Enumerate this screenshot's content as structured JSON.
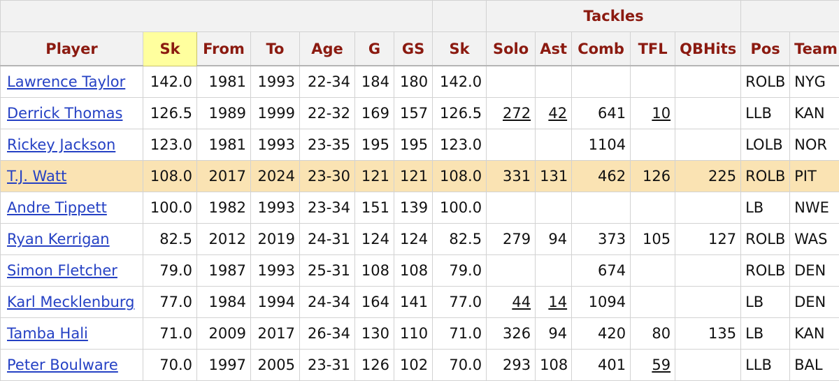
{
  "over_header": {
    "tackles_label": "Tackles"
  },
  "columns": [
    "Player",
    "Sk",
    "From",
    "To",
    "Age",
    "G",
    "GS",
    "Sk",
    "Solo",
    "Ast",
    "Comb",
    "TFL",
    "QBHits",
    "Pos",
    "Team"
  ],
  "colors": {
    "header_text": "#8b1a10",
    "link": "#2541c4",
    "sorted_header_bg": "#ffff9e",
    "highlight_row_bg": "#fae3b3"
  },
  "rows": [
    {
      "player": "Lawrence Taylor",
      "sk": "142.0",
      "from": "1981",
      "to": "1993",
      "age": "22-34",
      "g": "184",
      "gs": "180",
      "sk2": "142.0",
      "solo": "",
      "ast": "",
      "comb": "",
      "tfl": "",
      "qbhits": "",
      "pos": "ROLB",
      "team": "NYG"
    },
    {
      "player": "Derrick Thomas",
      "sk": "126.5",
      "from": "1989",
      "to": "1999",
      "age": "22-32",
      "g": "169",
      "gs": "157",
      "sk2": "126.5",
      "solo": "272",
      "ast": "42",
      "comb": "641",
      "tfl": "10",
      "qbhits": "",
      "pos": "LLB",
      "team": "KAN",
      "underlined": [
        "solo",
        "ast",
        "tfl"
      ]
    },
    {
      "player": "Rickey Jackson",
      "sk": "123.0",
      "from": "1981",
      "to": "1993",
      "age": "23-35",
      "g": "195",
      "gs": "195",
      "sk2": "123.0",
      "solo": "",
      "ast": "",
      "comb": "1104",
      "tfl": "",
      "qbhits": "",
      "pos": "LOLB",
      "team": "NOR"
    },
    {
      "player": "T.J. Watt",
      "sk": "108.0",
      "from": "2017",
      "to": "2024",
      "age": "23-30",
      "g": "121",
      "gs": "121",
      "sk2": "108.0",
      "solo": "331",
      "ast": "131",
      "comb": "462",
      "tfl": "126",
      "qbhits": "225",
      "pos": "ROLB",
      "team": "PIT",
      "highlight": true
    },
    {
      "player": "Andre Tippett",
      "sk": "100.0",
      "from": "1982",
      "to": "1993",
      "age": "23-34",
      "g": "151",
      "gs": "139",
      "sk2": "100.0",
      "solo": "",
      "ast": "",
      "comb": "",
      "tfl": "",
      "qbhits": "",
      "pos": "LB",
      "team": "NWE"
    },
    {
      "player": "Ryan Kerrigan",
      "sk": "82.5",
      "from": "2012",
      "to": "2019",
      "age": "24-31",
      "g": "124",
      "gs": "124",
      "sk2": "82.5",
      "solo": "279",
      "ast": "94",
      "comb": "373",
      "tfl": "105",
      "qbhits": "127",
      "pos": "ROLB",
      "team": "WAS"
    },
    {
      "player": "Simon Fletcher",
      "sk": "79.0",
      "from": "1987",
      "to": "1993",
      "age": "25-31",
      "g": "108",
      "gs": "108",
      "sk2": "79.0",
      "solo": "",
      "ast": "",
      "comb": "674",
      "tfl": "",
      "qbhits": "",
      "pos": "ROLB",
      "team": "DEN"
    },
    {
      "player": "Karl Mecklenburg",
      "sk": "77.0",
      "from": "1984",
      "to": "1994",
      "age": "24-34",
      "g": "164",
      "gs": "141",
      "sk2": "77.0",
      "solo": "44",
      "ast": "14",
      "comb": "1094",
      "tfl": "",
      "qbhits": "",
      "pos": "LB",
      "team": "DEN",
      "underlined": [
        "solo",
        "ast"
      ]
    },
    {
      "player": "Tamba Hali",
      "sk": "71.0",
      "from": "2009",
      "to": "2017",
      "age": "26-34",
      "g": "130",
      "gs": "110",
      "sk2": "71.0",
      "solo": "326",
      "ast": "94",
      "comb": "420",
      "tfl": "80",
      "qbhits": "135",
      "pos": "LB",
      "team": "KAN"
    },
    {
      "player": "Peter Boulware",
      "sk": "70.0",
      "from": "1997",
      "to": "2005",
      "age": "23-31",
      "g": "126",
      "gs": "102",
      "sk2": "70.0",
      "solo": "293",
      "ast": "108",
      "comb": "401",
      "tfl": "59",
      "qbhits": "",
      "pos": "LLB",
      "team": "BAL",
      "underlined": [
        "tfl"
      ]
    }
  ]
}
